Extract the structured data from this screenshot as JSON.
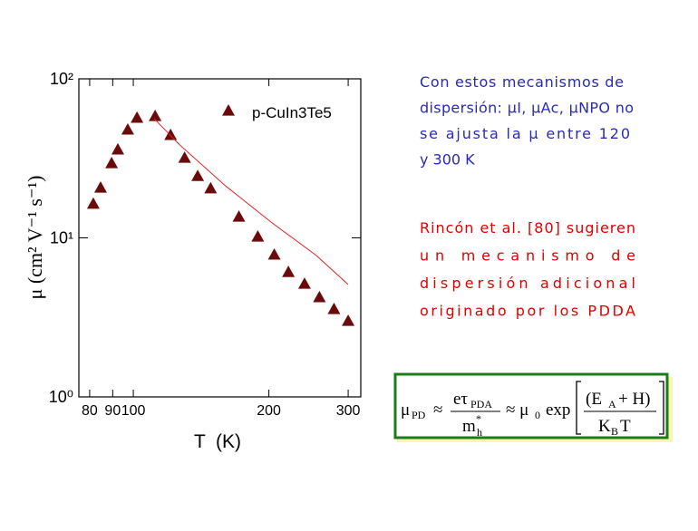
{
  "chart_data": {
    "type": "scatter",
    "xlabel": "T  (K)",
    "ylabel": "μ (cm² V⁻¹ s⁻¹)",
    "xscale": "log",
    "yscale": "log",
    "xlim": [
      75.7,
      320
    ],
    "ylim": [
      1,
      100
    ],
    "xticks": [
      80,
      90,
      100,
      200,
      300
    ],
    "yticks": [
      {
        "value": 1,
        "label": "10⁰"
      },
      {
        "value": 10,
        "label": "10¹"
      },
      {
        "value": 100,
        "label": "10²"
      }
    ],
    "legend": "upper right",
    "series": [
      {
        "name": "p-CuIn3Te5",
        "color": "#6b0a0a",
        "style": "markers",
        "x": [
          81.5,
          84.6,
          89.5,
          92.4,
          97.2,
          101.9,
          111.8,
          121,
          130,
          139,
          148.5,
          171.6,
          189,
          205.6,
          221,
          240,
          259,
          279,
          300
        ],
        "values": [
          16.4,
          20.7,
          29.5,
          36,
          48,
          57,
          58.4,
          44.4,
          31.9,
          24.5,
          20.5,
          13.6,
          10.2,
          7.85,
          6.1,
          5.15,
          4.24,
          3.57,
          3.01
        ]
      },
      {
        "color": "#e02020",
        "style": "line",
        "x": [
          111.3,
          126.8,
          160,
          202,
          255,
          300
        ],
        "values": [
          56.1,
          38.4,
          21.3,
          12.6,
          7.74,
          5.09
        ]
      }
    ]
  },
  "notes": [
    {
      "color": "#2a2ab8",
      "lines": [
        "Con estos mecanismos de",
        "dispersión: μI, μAc, μNPO no",
        "se ajusta la  μ  entre 120",
        "y 300 K"
      ]
    },
    {
      "color": "#e00000",
      "lines": [
        "Rincón et al. [80] sugieren",
        "un mecanismo de",
        "dispersión adicional",
        "originado por los PDDA"
      ]
    }
  ],
  "formula": {
    "lhs": "μ",
    "lhs_sub": "PD",
    "approx": "≈",
    "num": "eτ",
    "num_sub": "PDA",
    "den": "m",
    "den_sup": "*",
    "den_sub": "h",
    "mid": "≈ μ",
    "mid_sub": "0",
    "exp": "exp",
    "top": "(E",
    "top_sub": "A",
    "top_rest": "+ H)",
    "bot": "K",
    "bot_sub": "B",
    "bot_rest": "T"
  }
}
